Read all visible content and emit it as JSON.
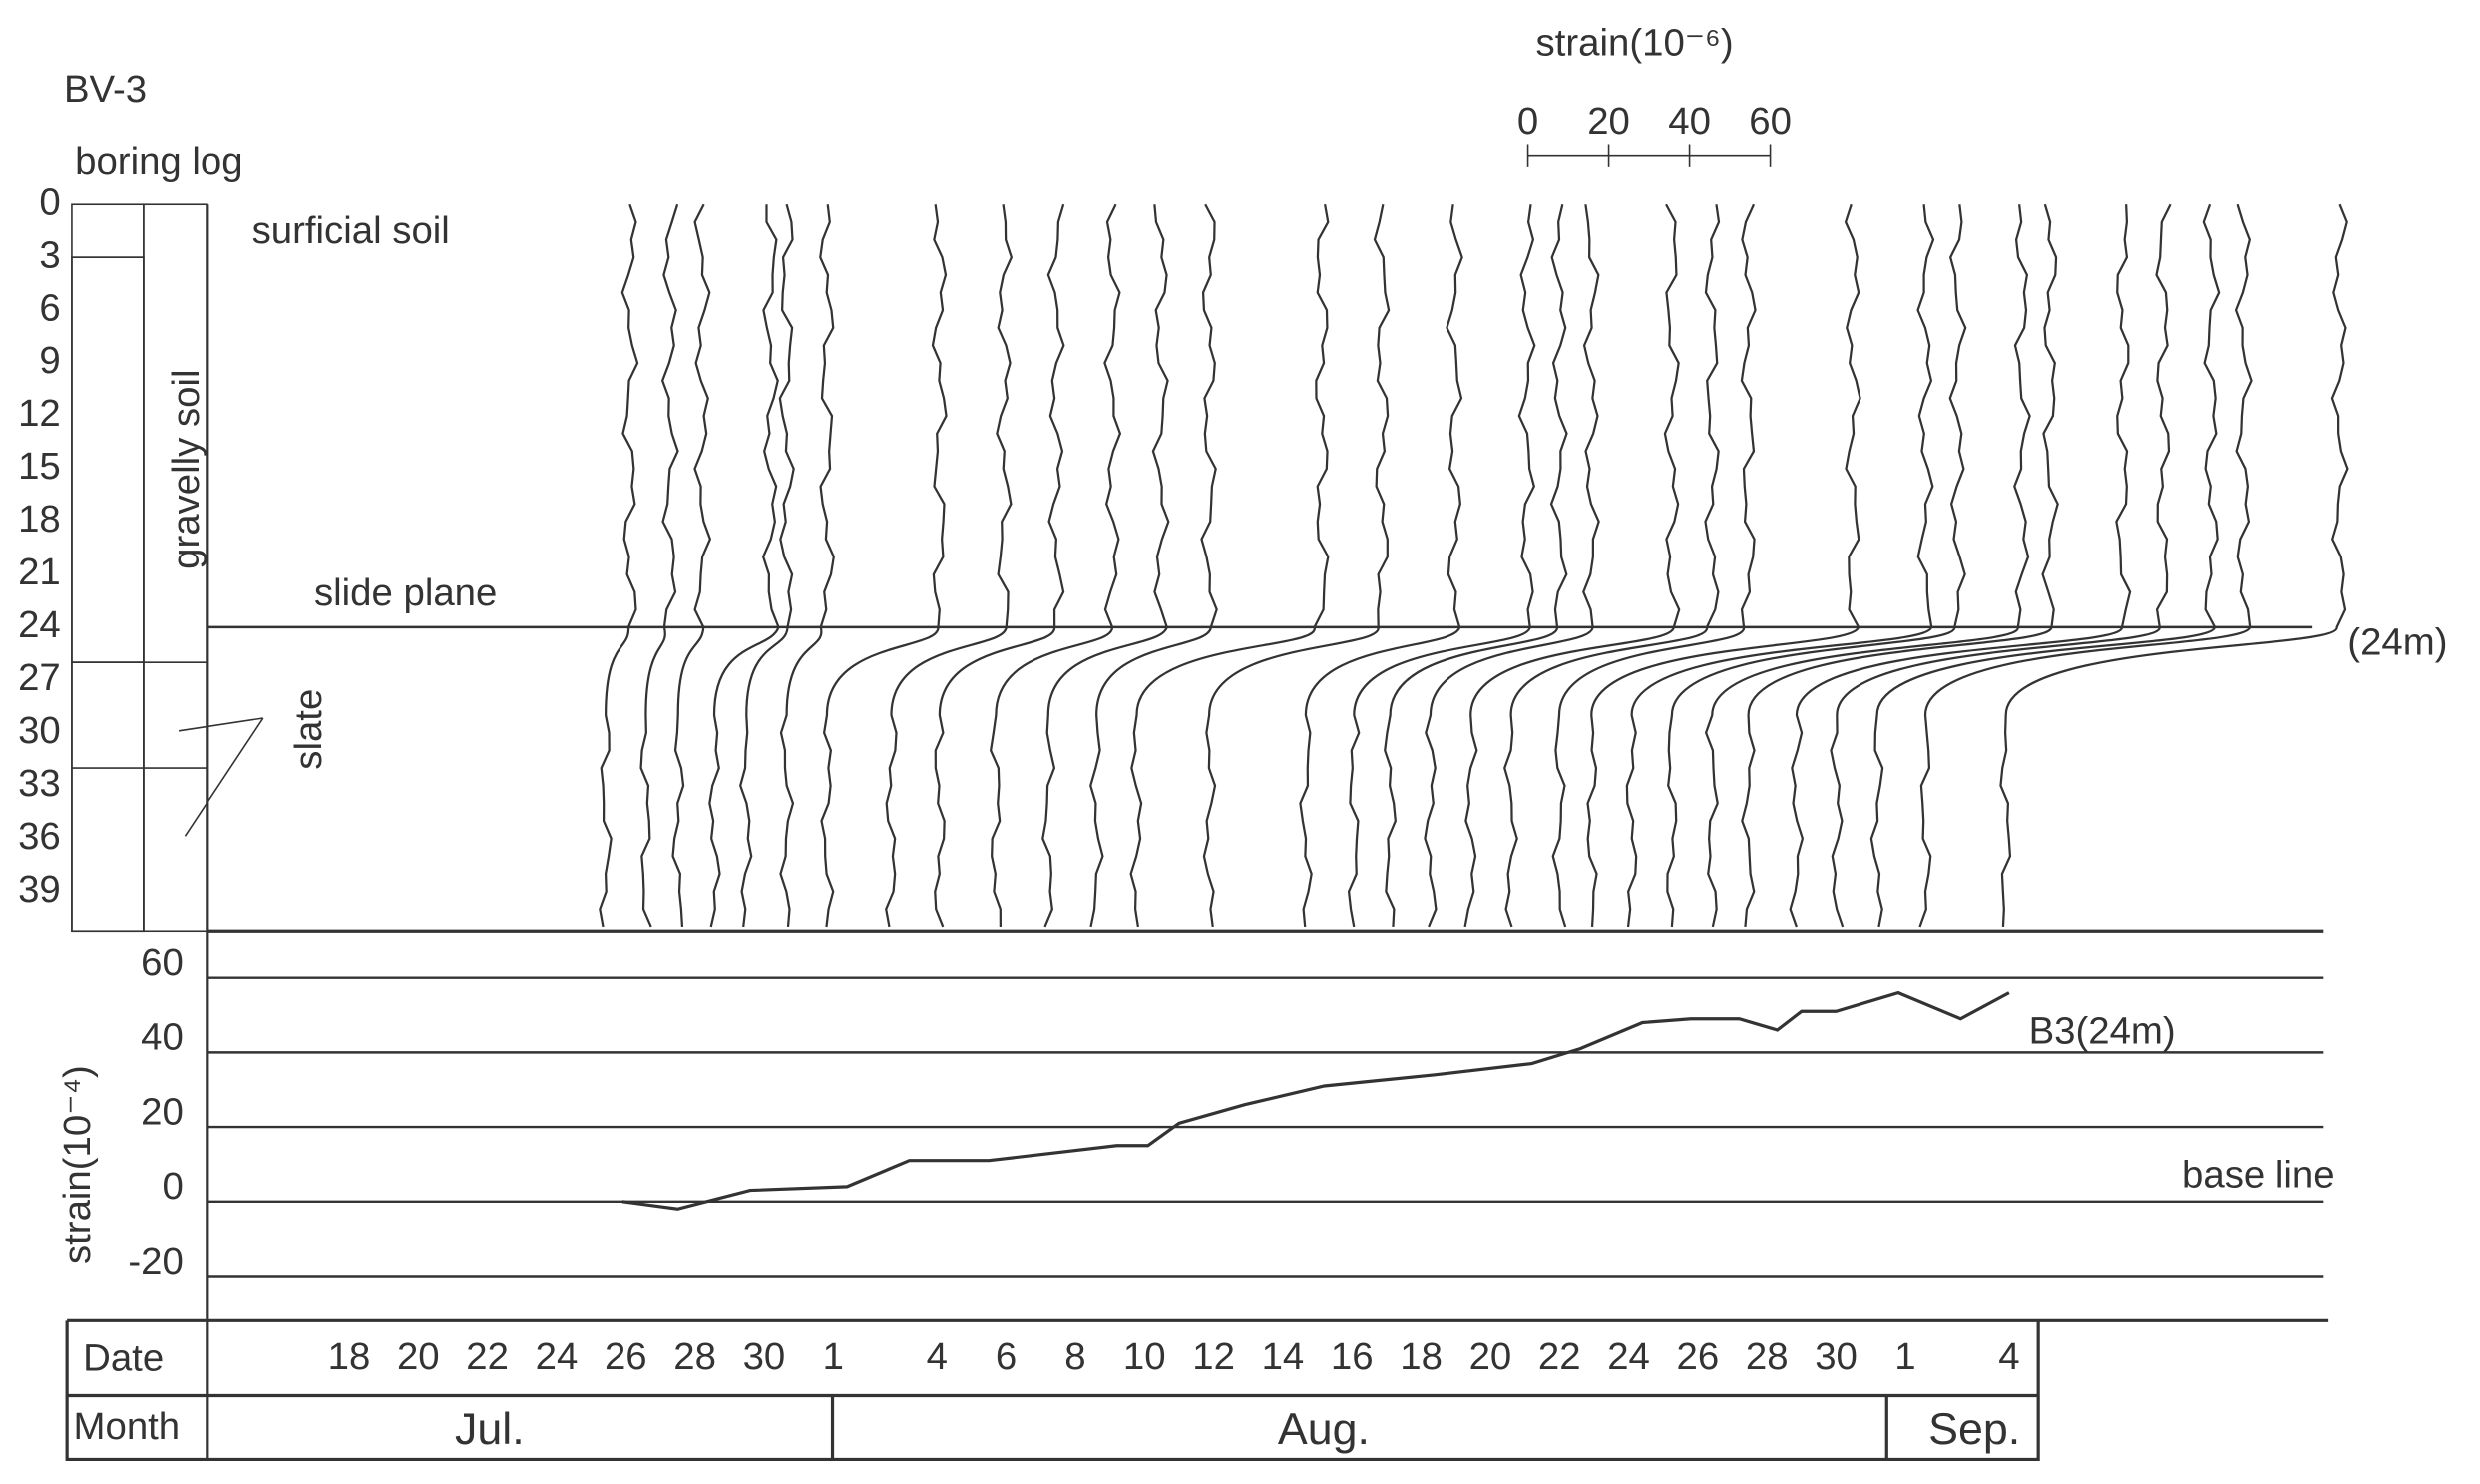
{
  "title": "BV-3",
  "boring_log": {
    "label": "boring log",
    "surface_label": "surficial soil",
    "boundaries": [
      3,
      26,
      32
    ],
    "layers": [
      {
        "label": "gravelly soil",
        "top": 3,
        "bottom": 26
      },
      {
        "label": "slate",
        "top": 26,
        "bottom": 41.3
      }
    ]
  },
  "chart_data": [
    {
      "type": "profiles",
      "ylim": [
        0,
        41.3
      ],
      "yticks": [
        0,
        3,
        6,
        9,
        12,
        15,
        18,
        21,
        24,
        27,
        30,
        33,
        36,
        39
      ],
      "xlim": [
        0,
        526
      ],
      "scale_label": "strain(10⁻⁶)",
      "scale_ticks": [
        0,
        20,
        40,
        60
      ],
      "slide_plane": {
        "value": 24,
        "label": "(24m)"
      },
      "slide_plane_label": "slide plane",
      "profiles": {
        "x_above": [
          105,
          115,
          123,
          140,
          144,
          154,
          182,
          198,
          211,
          225,
          237,
          249,
          277,
          292,
          310,
          328,
          336,
          344,
          364,
          374,
          383,
          409,
          427,
          435,
          451,
          458,
          476,
          486,
          498,
          506,
          530
        ],
        "x_below": [
          99,
          109,
          117,
          126,
          134,
          144,
          154,
          170,
          182,
          196,
          209,
          221,
          231,
          249,
          273,
          285,
          294,
          304,
          314,
          324,
          336,
          344,
          354,
          364,
          374,
          383,
          395,
          405,
          415,
          427,
          447
        ]
      }
    },
    {
      "type": "line",
      "ylabel": "strain(10⁻⁴)",
      "ylim": [
        -32,
        69
      ],
      "yticks": [
        60,
        40,
        20,
        0,
        -20
      ],
      "xlim": [
        13.9,
        75.1
      ],
      "xlabel": "Date",
      "month_label": "Month",
      "months": [
        "Jul.",
        "Aug.",
        "Sep."
      ],
      "xticks": [
        18,
        20,
        22,
        24,
        26,
        28,
        30,
        {
          "value": 32,
          "label": "1"
        },
        {
          "value": 35,
          "label": "4"
        },
        {
          "value": 37,
          "label": "6"
        },
        {
          "value": 39,
          "label": "8"
        },
        {
          "value": 41,
          "label": "10"
        },
        {
          "value": 43,
          "label": "12"
        },
        {
          "value": 45,
          "label": "14"
        },
        {
          "value": 47,
          "label": "16"
        },
        {
          "value": 49,
          "label": "18"
        },
        {
          "value": 51,
          "label": "20"
        },
        {
          "value": 53,
          "label": "22"
        },
        {
          "value": 55,
          "label": "24"
        },
        {
          "value": 57,
          "label": "26"
        },
        {
          "value": 59,
          "label": "28"
        },
        {
          "value": 61,
          "label": "30"
        },
        {
          "value": 63,
          "label": "1"
        },
        {
          "value": 66,
          "label": "4"
        }
      ],
      "annotation": "base line",
      "series": [
        {
          "name": "B3(24m)",
          "color": "#333333",
          "x": [
            25.9,
            27.5,
            29.6,
            32.4,
            34.2,
            36.5,
            40.2,
            41.1,
            42,
            43.9,
            46.2,
            49.4,
            52.2,
            53.6,
            55.4,
            56.8,
            58.2,
            59.3,
            60,
            61,
            62.8,
            64.6,
            66
          ],
          "values": [
            0,
            -2,
            3,
            4,
            11,
            11,
            15,
            15,
            21,
            26,
            31,
            34,
            37,
            41,
            48,
            49,
            49,
            46,
            51,
            51,
            56,
            49,
            56
          ]
        }
      ]
    }
  ]
}
